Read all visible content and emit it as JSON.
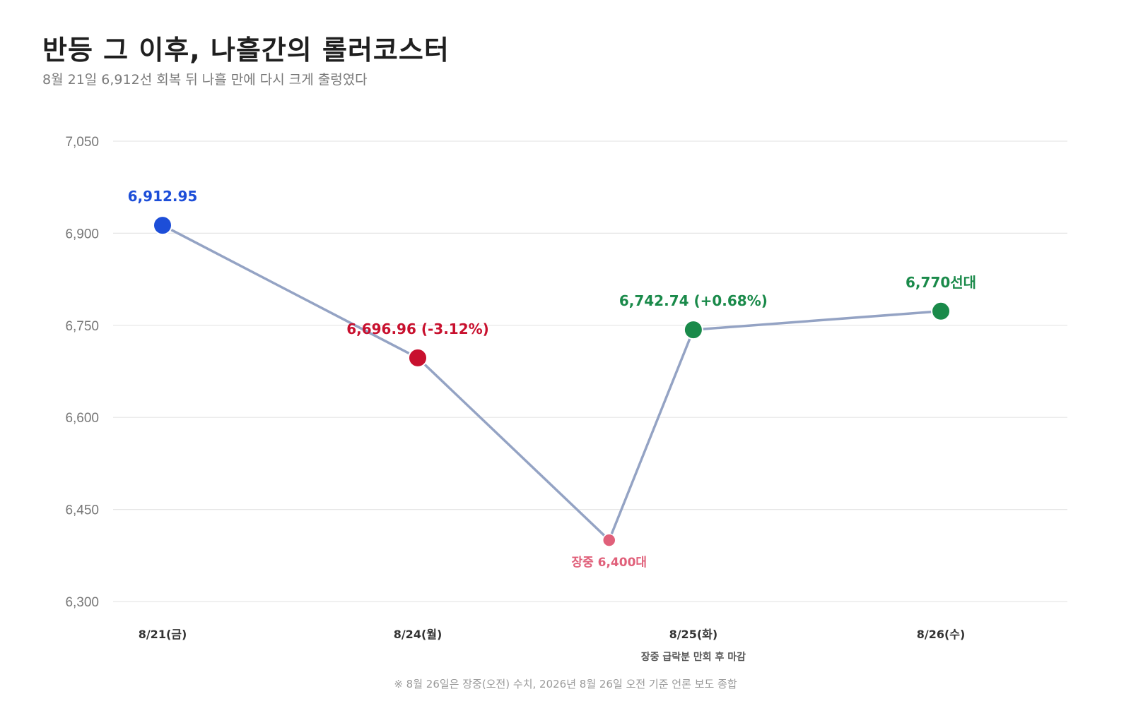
{
  "header": {
    "title": "반등 그 이후, 나흘간의 롤러코스터",
    "subtitle": "8월 21일 6,912선 회복 뒤 나흘 만에 다시 크게 출렁였다"
  },
  "footnote": "※ 8월 26일은 장중(오전) 수치, 2026년 8월 26일 오전 기준 언론 보도 종합",
  "chart_data": {
    "type": "line",
    "title": "반등 그 이후, 나흘간의 롤러코스터",
    "subtitle": "8월 21일 6,912선 회복 뒤 나흘 만에 다시 크게 출렁였다",
    "ylim": [
      6300,
      7050
    ],
    "yticks": [
      6300,
      6450,
      6600,
      6750,
      6900,
      7050
    ],
    "ytick_labels": [
      "6,300",
      "6,450",
      "6,600",
      "6,750",
      "6,900",
      "7,050"
    ],
    "grid": true,
    "line_color": "#94a3c4",
    "categories": [
      "8/21(금)",
      "8/24(월)",
      "8/25(화)",
      "8/26(수)"
    ],
    "x_annotations": [
      {
        "category": "8/25(화)",
        "text": "장중 급락분 만회 후 마감"
      }
    ],
    "points": [
      {
        "x": 0,
        "value": 6912.95,
        "label": "6,912.95",
        "color": "#1d4ed8",
        "kind": "major",
        "label_pos": "above"
      },
      {
        "x": 1,
        "value": 6696.96,
        "label": "6,696.96 (-3.12%)",
        "color": "#c8102e",
        "kind": "major",
        "label_pos": "above"
      },
      {
        "x": 1.75,
        "value": 6400,
        "label": "장중 6,400대",
        "color": "#e0607a",
        "kind": "minor",
        "label_pos": "below"
      },
      {
        "x": 2.08,
        "value": 6742.74,
        "label": "6,742.74 (+0.68%)",
        "color": "#1a8a4a",
        "kind": "major",
        "label_pos": "above"
      },
      {
        "x": 3.05,
        "value": 6773,
        "label": "6,770선대",
        "color": "#1a8a4a",
        "kind": "major",
        "label_pos": "above"
      }
    ],
    "category_positions": [
      0,
      1,
      2.08,
      3.05
    ]
  }
}
